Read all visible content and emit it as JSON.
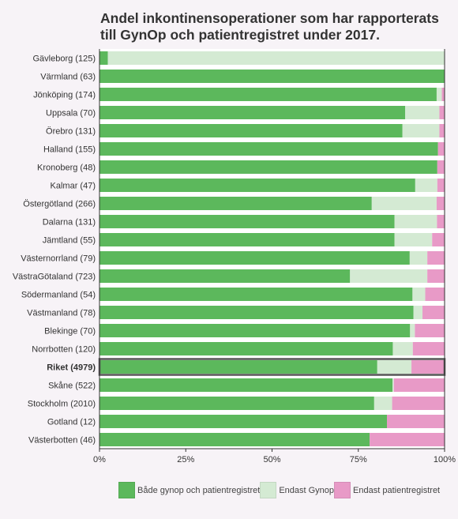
{
  "chart_data": {
    "type": "bar",
    "orientation": "horizontal",
    "stacked": true,
    "title_line1": "Andel inkontinensoperationer som har rapporterats",
    "title_line2": "till GynOp och patientregistret under 2017.",
    "categories": [
      "Gävleborg (125)",
      "Värmland (63)",
      "Jönköping (174)",
      "Uppsala (70)",
      "Örebro (131)",
      "Halland (155)",
      "Kronoberg (48)",
      "Kalmar (47)",
      "Östergötland (266)",
      "Dalarna (131)",
      "Jämtland (55)",
      "Västernorrland (79)",
      "VästraGötaland (723)",
      "Södermanland (54)",
      "Västmanland (78)",
      "Blekinge (70)",
      "Norrbotten (120)",
      "Riket (4979)",
      "Skåne (522)",
      "Stockholm (2010)",
      "Gotland (12)",
      "Västerbotten (46)"
    ],
    "highlight_category": "Riket (4979)",
    "series": [
      {
        "name": "Både gynop och patientregistret",
        "color": "#5cb85c",
        "values": [
          2.4,
          100,
          97.7,
          88.6,
          87.8,
          98.1,
          97.9,
          91.5,
          78.9,
          85.5,
          85.5,
          89.9,
          72.6,
          90.7,
          91.0,
          90.0,
          85.0,
          80.5,
          84.9,
          79.6,
          83.3,
          78.3
        ]
      },
      {
        "name": "Endast Gynop",
        "color": "#d4ead3",
        "values": [
          97.6,
          0,
          1.5,
          9.9,
          10.7,
          0,
          0,
          6.4,
          18.8,
          12.3,
          10.9,
          5.1,
          22.4,
          3.7,
          2.6,
          1.4,
          5.8,
          9.9,
          0.4,
          5.2,
          0,
          0
        ]
      },
      {
        "name": "Endast patientregistret",
        "color": "#e89ac7",
        "values": [
          0,
          0,
          0.8,
          1.5,
          1.5,
          1.9,
          2.1,
          2.1,
          2.3,
          2.2,
          3.6,
          5.0,
          5.0,
          5.6,
          6.4,
          8.6,
          9.2,
          9.6,
          14.7,
          15.2,
          16.7,
          21.7
        ]
      }
    ],
    "x_ticks": [
      "0%",
      "25%",
      "50%",
      "75%",
      "100%"
    ],
    "xlim": [
      0,
      100
    ],
    "legend_position": "bottom"
  }
}
